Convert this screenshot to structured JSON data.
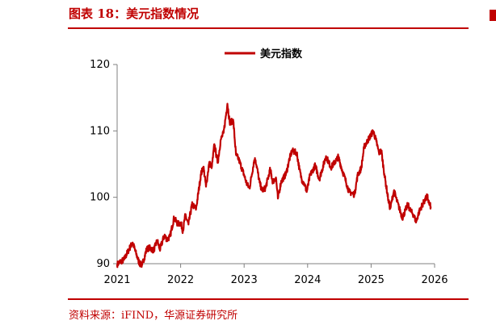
{
  "figure": {
    "title": "图表 18：美元指数情况",
    "source": "资料来源：iFIND，华源证券研究所"
  },
  "colors": {
    "accent": "#c00000",
    "series": "#c00000",
    "axis": "#808080"
  },
  "chart_data": {
    "type": "line",
    "title": "",
    "xlabel": "",
    "ylabel": "",
    "xlim": [
      2021,
      2026
    ],
    "ylim": [
      90,
      120
    ],
    "x_ticks": [
      "2021",
      "2022",
      "2023",
      "2024",
      "2025",
      "2026"
    ],
    "y_ticks": [
      "90",
      "100",
      "110",
      "120"
    ],
    "grid": false,
    "legend": "top",
    "series": [
      {
        "name": "美元指数",
        "x": [
          "2021-01-01",
          "2021-01-20",
          "2021-02-10",
          "2021-03-05",
          "2021-03-31",
          "2021-04-20",
          "2021-05-10",
          "2021-05-25",
          "2021-06-20",
          "2021-07-05",
          "2021-07-30",
          "2021-08-20",
          "2021-09-03",
          "2021-09-30",
          "2021-10-15",
          "2021-11-01",
          "2021-11-24",
          "2021-12-15",
          "2022-01-03",
          "2022-01-14",
          "2022-01-28",
          "2022-02-15",
          "2022-03-07",
          "2022-03-31",
          "2022-04-28",
          "2022-05-12",
          "2022-05-27",
          "2022-06-14",
          "2022-06-30",
          "2022-07-14",
          "2022-08-02",
          "2022-08-20",
          "2022-09-05",
          "2022-09-27",
          "2022-10-10",
          "2022-10-31",
          "2022-11-15",
          "2022-11-30",
          "2022-12-30",
          "2023-01-18",
          "2023-02-01",
          "2023-02-28",
          "2023-03-08",
          "2023-03-31",
          "2023-04-14",
          "2023-05-04",
          "2023-05-31",
          "2023-06-15",
          "2023-07-03",
          "2023-07-14",
          "2023-08-01",
          "2023-08-31",
          "2023-09-15",
          "2023-10-03",
          "2023-10-31",
          "2023-11-15",
          "2023-11-28",
          "2023-12-15",
          "2023-12-27",
          "2024-01-15",
          "2024-02-14",
          "2024-03-08",
          "2024-04-16",
          "2024-05-15",
          "2024-06-14",
          "2024-06-26",
          "2024-07-17",
          "2024-08-05",
          "2024-08-27",
          "2024-09-15",
          "2024-09-27",
          "2024-10-15",
          "2024-11-05",
          "2024-11-22",
          "2025-01-13",
          "2025-01-31",
          "2025-02-15",
          "2025-03-01",
          "2025-03-18",
          "2025-04-10",
          "2025-04-21",
          "2025-05-12",
          "2025-05-31",
          "2025-06-30",
          "2025-07-15",
          "2025-07-31",
          "2025-08-15",
          "2025-09-01",
          "2025-09-17",
          "2025-10-01",
          "2025-10-15",
          "2025-11-05",
          "2025-11-20",
          "2025-12-01",
          "2025-12-10"
        ],
        "y": [
          89.9,
          90.3,
          90.6,
          91.9,
          93.2,
          91.5,
          90.0,
          89.8,
          92.2,
          92.4,
          92.0,
          93.5,
          92.1,
          94.3,
          93.6,
          94.1,
          96.9,
          96.0,
          96.1,
          94.9,
          97.3,
          95.9,
          98.9,
          98.3,
          103.5,
          104.6,
          101.6,
          105.1,
          104.7,
          108.0,
          105.2,
          108.7,
          109.7,
          114.1,
          111.3,
          111.5,
          106.4,
          105.8,
          103.5,
          101.9,
          101.4,
          105.6,
          105.6,
          102.2,
          101.0,
          101.4,
          104.2,
          102.3,
          103.0,
          99.8,
          102.3,
          103.6,
          105.4,
          107.0,
          106.7,
          104.2,
          102.7,
          101.9,
          100.8,
          103.3,
          104.8,
          102.7,
          106.2,
          104.5,
          105.6,
          106.1,
          104.2,
          102.7,
          100.8,
          100.6,
          100.4,
          103.3,
          104.4,
          107.6,
          110.0,
          108.4,
          106.7,
          107.0,
          103.5,
          99.6,
          98.3,
          101.0,
          99.3,
          96.9,
          97.9,
          98.9,
          98.0,
          97.4,
          96.3,
          97.6,
          98.5,
          99.5,
          100.2,
          99.0,
          98.6
        ]
      }
    ]
  }
}
